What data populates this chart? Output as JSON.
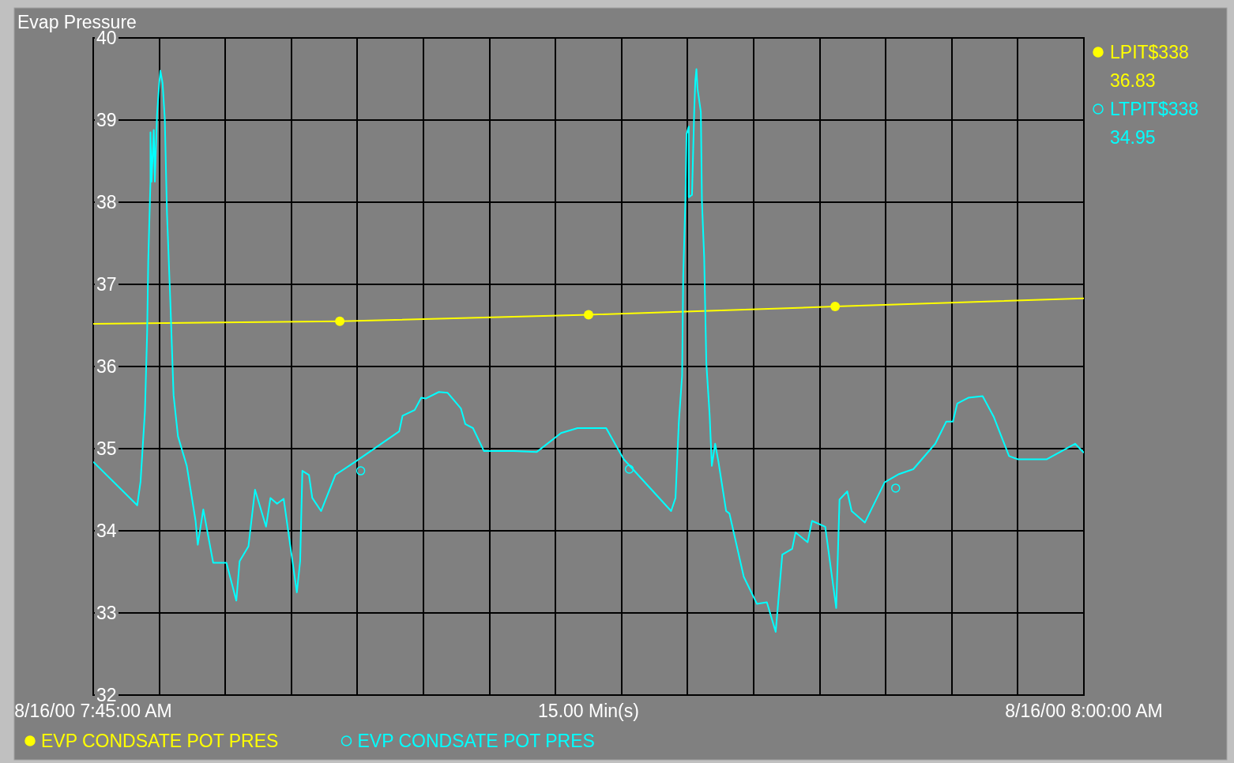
{
  "chart_data": {
    "type": "line",
    "title": "Evap Pressure",
    "xlabel": "15.00 Min(s)",
    "xlim": [
      "2000-08-16T07:45",
      "2000-08-16T08:00"
    ],
    "xticks": [
      {
        "value": "2000-08-16T07:45",
        "label": "8/16/00 7:45:00 AM"
      },
      {
        "value": "2000-08-16T07:46",
        "label": null
      },
      {
        "value": "2000-08-16T07:47",
        "label": null
      },
      {
        "value": "2000-08-16T07:48",
        "label": null
      },
      {
        "value": "2000-08-16T07:49",
        "label": null
      },
      {
        "value": "2000-08-16T07:50",
        "label": null
      },
      {
        "value": "2000-08-16T07:51",
        "label": null
      },
      {
        "value": "2000-08-16T07:52",
        "label": null
      },
      {
        "value": "2000-08-16T07:53",
        "label": null
      },
      {
        "value": "2000-08-16T07:54",
        "label": null
      },
      {
        "value": "2000-08-16T07:55",
        "label": null
      },
      {
        "value": "2000-08-16T07:56",
        "label": null
      },
      {
        "value": "2000-08-16T07:57",
        "label": null
      },
      {
        "value": "2000-08-16T07:58",
        "label": null
      },
      {
        "value": "2000-08-16T07:59",
        "label": null
      },
      {
        "value": "2000-08-16T08:00",
        "label": "8/16/00 8:00:00 AM"
      }
    ],
    "ylim": [
      32,
      40
    ],
    "yticks": [
      32,
      33,
      34,
      35,
      36,
      37,
      38,
      39,
      40
    ],
    "grid": true,
    "legend": "bottom",
    "line_style": "solid",
    "annotations": [
      "LPIT$338",
      "36.83",
      "LTPIT$338",
      "34.95"
    ],
    "series": [
      {
        "name": "EVP CONDSATE POT PRES",
        "color": "#ffff00",
        "marker": "circle",
        "x": [
          "2000-08-16T07:45:00",
          "2000-08-16T07:48:44",
          "2000-08-16T07:52:30",
          "2000-08-16T07:56:14",
          "2000-08-16T08:00:00"
        ],
        "values": [
          36.52,
          36.55,
          36.63,
          36.73,
          36.83
        ]
      },
      {
        "name": "EVP CONDSATE POT PRES",
        "color": "#00ffff",
        "marker": "none",
        "x": [
          "2000-08-16T07:45:00",
          "2000-08-16T07:45:40",
          "2000-08-16T07:45:43",
          "2000-08-16T07:45:47",
          "2000-08-16T07:45:49",
          "2000-08-16T07:45:50",
          "2000-08-16T07:45:52",
          "2000-08-16T07:45:52",
          "2000-08-16T07:45:53",
          "2000-08-16T07:45:55",
          "2000-08-16T07:45:56",
          "2000-08-16T07:45:58",
          "2000-08-16T07:46:00",
          "2000-08-16T07:46:01",
          "2000-08-16T07:46:03",
          "2000-08-16T07:46:05",
          "2000-08-16T07:46:07",
          "2000-08-16T07:46:10",
          "2000-08-16T07:46:13",
          "2000-08-16T07:46:17",
          "2000-08-16T07:46:25",
          "2000-08-16T07:46:33",
          "2000-08-16T07:46:35",
          "2000-08-16T07:46:40",
          "2000-08-16T07:46:49",
          "2000-08-16T07:47:01",
          "2000-08-16T07:47:10",
          "2000-08-16T07:47:13",
          "2000-08-16T07:47:21",
          "2000-08-16T07:47:27",
          "2000-08-16T07:47:37",
          "2000-08-16T07:47:41",
          "2000-08-16T07:47:47",
          "2000-08-16T07:47:53",
          "2000-08-16T07:48:05",
          "2000-08-16T07:48:08",
          "2000-08-16T07:48:10",
          "2000-08-16T07:48:16",
          "2000-08-16T07:48:19",
          "2000-08-16T07:48:27",
          "2000-08-16T07:48:40",
          "2000-08-16T07:48:58",
          "2000-08-16T07:49:38",
          "2000-08-16T07:49:41",
          "2000-08-16T07:49:52",
          "2000-08-16T07:49:58",
          "2000-08-16T07:50:02",
          "2000-08-16T07:50:14",
          "2000-08-16T07:50:22",
          "2000-08-16T07:50:34",
          "2000-08-16T07:50:38",
          "2000-08-16T07:50:45",
          "2000-08-16T07:50:55",
          "2000-08-16T07:51:22",
          "2000-08-16T07:51:43",
          "2000-08-16T07:52:05",
          "2000-08-16T07:52:20",
          "2000-08-16T07:52:46",
          "2000-08-16T07:53:02",
          "2000-08-16T07:53:45",
          "2000-08-16T07:53:49",
          "2000-08-16T07:53:52",
          "2000-08-16T07:53:55",
          "2000-08-16T07:53:56",
          "2000-08-16T07:53:58",
          "2000-08-16T07:53:59",
          "2000-08-16T07:54:01",
          "2000-08-16T07:54:01",
          "2000-08-16T07:54:04",
          "2000-08-16T07:54:06",
          "2000-08-16T07:54:07",
          "2000-08-16T07:54:08",
          "2000-08-16T07:54:09",
          "2000-08-16T07:54:12",
          "2000-08-16T07:54:13",
          "2000-08-16T07:54:15",
          "2000-08-16T07:54:17",
          "2000-08-16T07:54:20",
          "2000-08-16T07:54:22",
          "2000-08-16T07:54:25",
          "2000-08-16T07:54:28",
          "2000-08-16T07:54:35",
          "2000-08-16T07:54:38",
          "2000-08-16T07:54:51",
          "2000-08-16T07:55:03",
          "2000-08-16T07:55:12",
          "2000-08-16T07:55:20",
          "2000-08-16T07:55:26",
          "2000-08-16T07:55:35",
          "2000-08-16T07:55:38",
          "2000-08-16T07:55:49",
          "2000-08-16T07:55:53",
          "2000-08-16T07:56:05",
          "2000-08-16T07:56:15",
          "2000-08-16T07:56:18",
          "2000-08-16T07:56:25",
          "2000-08-16T07:56:29",
          "2000-08-16T07:56:41",
          "2000-08-16T07:56:59",
          "2000-08-16T07:57:12",
          "2000-08-16T07:57:25",
          "2000-08-16T07:57:45",
          "2000-08-16T07:57:55",
          "2000-08-16T07:58:01",
          "2000-08-16T07:58:05",
          "2000-08-16T07:58:15",
          "2000-08-16T07:58:28",
          "2000-08-16T07:58:38",
          "2000-08-16T07:58:52",
          "2000-08-16T07:59:00",
          "2000-08-16T07:59:26",
          "2000-08-16T07:59:52",
          "2000-08-16T08:00:00"
        ],
        "values": [
          34.84,
          34.31,
          34.6,
          35.46,
          36.42,
          37.29,
          38.25,
          38.85,
          38.25,
          38.88,
          38.25,
          39.07,
          39.45,
          39.6,
          39.45,
          39.02,
          37.87,
          36.81,
          35.65,
          35.15,
          34.79,
          34.12,
          33.83,
          34.26,
          33.61,
          33.61,
          33.15,
          33.63,
          33.81,
          34.5,
          34.05,
          34.4,
          34.33,
          34.39,
          33.25,
          33.63,
          34.73,
          34.68,
          34.4,
          34.24,
          34.68,
          34.84,
          35.21,
          35.4,
          35.47,
          35.62,
          35.61,
          35.69,
          35.68,
          35.49,
          35.3,
          35.25,
          34.97,
          34.97,
          34.96,
          35.19,
          35.25,
          35.25,
          34.87,
          34.24,
          34.4,
          35.32,
          35.89,
          37.1,
          38.04,
          38.83,
          38.92,
          38.06,
          38.09,
          39.12,
          39.48,
          39.62,
          39.38,
          39.1,
          38.01,
          37.34,
          36.04,
          35.41,
          34.79,
          35.06,
          34.84,
          34.24,
          34.21,
          33.44,
          33.11,
          33.13,
          32.77,
          33.71,
          33.78,
          33.98,
          33.86,
          34.12,
          34.05,
          33.06,
          34.38,
          34.48,
          34.24,
          34.1,
          34.59,
          34.69,
          34.75,
          35.06,
          35.33,
          35.33,
          35.55,
          35.62,
          35.64,
          35.39,
          34.91,
          34.87,
          34.87,
          35.06,
          34.95
        ]
      },
      {
        "type": "scatter",
        "color": "#00ffff",
        "marker": "circle",
        "x": [
          "2000-08-16T07:49:03",
          "2000-08-16T07:53:07",
          "2000-08-16T07:57:09"
        ],
        "values": [
          34.73,
          34.75,
          34.52
        ]
      }
    ]
  }
}
